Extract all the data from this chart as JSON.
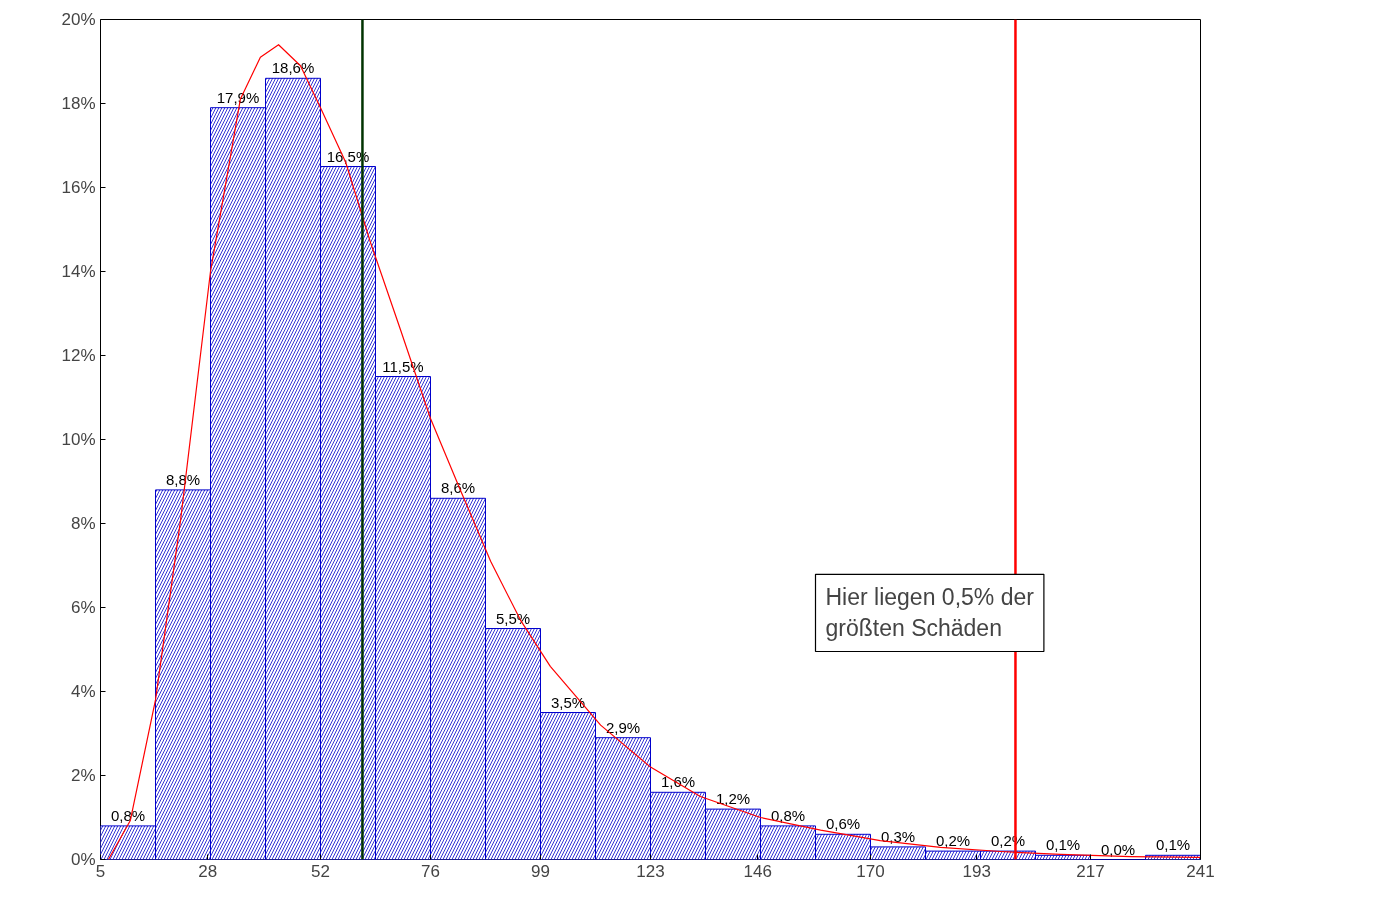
{
  "chart_data": {
    "type": "histogram",
    "series": [
      {
        "type": "histogram",
        "color": "#0000cc",
        "bins": [
          5,
          16.8,
          28.6,
          40.4,
          52.2,
          64,
          75.8,
          87.6,
          99.4,
          111.2,
          123,
          134.8,
          146.6,
          158.4,
          170.2,
          182,
          193.8,
          205.6,
          217.4,
          229.2,
          241
        ],
        "values": [
          0.8,
          8.8,
          17.9,
          18.6,
          16.5,
          11.5,
          8.6,
          5.5,
          3.5,
          2.9,
          1.6,
          1.2,
          0.8,
          0.6,
          0.3,
          0.2,
          0.2,
          0.1,
          0.0,
          0.1
        ],
        "value_labels": [
          "0,8%",
          "8,8%",
          "17,9%",
          "18,6%",
          "16,5%",
          "11,5%",
          "8,6%",
          "5,5%",
          "3,5%",
          "2,9%",
          "1,6%",
          "1,2%",
          "0,8%",
          "0,6%",
          "0,3%",
          "0,2%",
          "0,2%",
          "0,1%",
          "0,0%",
          "0,1%"
        ]
      },
      {
        "type": "line",
        "color": "#ff0000",
        "x": [
          6.7,
          11.4,
          16.8,
          22.2,
          28.6,
          35.0,
          39.3,
          43.2,
          47.9,
          52.2,
          57.6,
          62.9,
          69.4,
          75.8,
          82.2,
          88.7,
          95.1,
          101.5,
          112.3,
          123.0,
          133.7,
          146.6,
          159.5,
          172.3,
          185.2,
          198.1,
          211,
          226,
          241
        ],
        "values": [
          0,
          0.93,
          3.8,
          8.1,
          14.0,
          18.1,
          19.1,
          19.4,
          18.9,
          17.9,
          16.6,
          14.7,
          12.6,
          10.5,
          8.8,
          7.1,
          5.7,
          4.6,
          3.2,
          2.2,
          1.5,
          1.0,
          0.7,
          0.45,
          0.29,
          0.19,
          0.12,
          0.07,
          0.05
        ]
      }
    ],
    "xlim": [
      5,
      241
    ],
    "xticks": [
      {
        "value": 5,
        "label": "5"
      },
      {
        "value": 28,
        "label": "28"
      },
      {
        "value": 52.2,
        "label": "52"
      },
      {
        "value": 75.8,
        "label": "76"
      },
      {
        "value": 99.4,
        "label": "99"
      },
      {
        "value": 123,
        "label": "123"
      },
      {
        "value": 146,
        "label": "146"
      },
      {
        "value": 170.2,
        "label": "170"
      },
      {
        "value": 193,
        "label": "193"
      },
      {
        "value": 217.4,
        "label": "217"
      },
      {
        "value": 241,
        "label": "241"
      }
    ],
    "ylim": [
      0,
      20
    ],
    "yticks": [
      {
        "value": 0,
        "label": "0%"
      },
      {
        "value": 2,
        "label": "2%"
      },
      {
        "value": 4,
        "label": "4%"
      },
      {
        "value": 6,
        "label": "6%"
      },
      {
        "value": 8,
        "label": "8%"
      },
      {
        "value": 10,
        "label": "10%"
      },
      {
        "value": 12,
        "label": "12%"
      },
      {
        "value": 14,
        "label": "14%"
      },
      {
        "value": 16,
        "label": "16%"
      },
      {
        "value": 18,
        "label": "18%"
      },
      {
        "value": 20,
        "label": "20%"
      }
    ],
    "ref_lines": [
      {
        "axis": "x",
        "value": 61.2,
        "color": "#003300"
      },
      {
        "axis": "x",
        "value": 201.3,
        "color": "#ff0000"
      }
    ],
    "annotations": [
      "Hier liegen 0,5% der\ngrößten Schäden"
    ],
    "grid": false
  }
}
